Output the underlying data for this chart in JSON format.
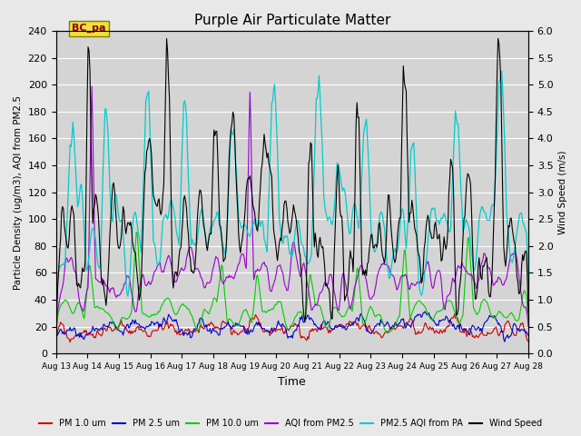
{
  "title": "Purple Air Particulate Matter",
  "xlabel": "Time",
  "ylabel_left": "Particle Density (ug/m3), AQI from PM2.5",
  "ylabel_right": "Wind Speed (m/s)",
  "annotation_text": "BC_pa",
  "ylim_left": [
    0,
    240
  ],
  "ylim_right": [
    0.0,
    6.0
  ],
  "xtick_labels": [
    "Aug 13",
    "Aug 14",
    "Aug 15",
    "Aug 16",
    "Aug 17",
    "Aug 18",
    "Aug 19",
    "Aug 20",
    "Aug 21",
    "Aug 22",
    "Aug 23",
    "Aug 24",
    "Aug 25",
    "Aug 26",
    "Aug 27",
    "Aug 28"
  ],
  "legend_entries": [
    "PM 1.0 um",
    "PM 2.5 um",
    "PM 10.0 um",
    "AQI from PM2.5",
    "PM2.5 AQI from PA",
    "Wind Speed"
  ],
  "legend_colors": [
    "#cc0000",
    "#0000cc",
    "#00cc00",
    "#9900cc",
    "#00cccc",
    "#000000"
  ],
  "line_colors": {
    "pm1": "#cc0000",
    "pm25": "#0000cc",
    "pm10": "#00cc00",
    "aqi_pm25": "#9900cc",
    "aqi_pa": "#00cccc",
    "wind": "#000000"
  },
  "background_color": "#e8e8e8",
  "plot_bg_color": "#d4d4d4",
  "grid_color": "#ffffff",
  "n_points": 500,
  "seed": 42
}
